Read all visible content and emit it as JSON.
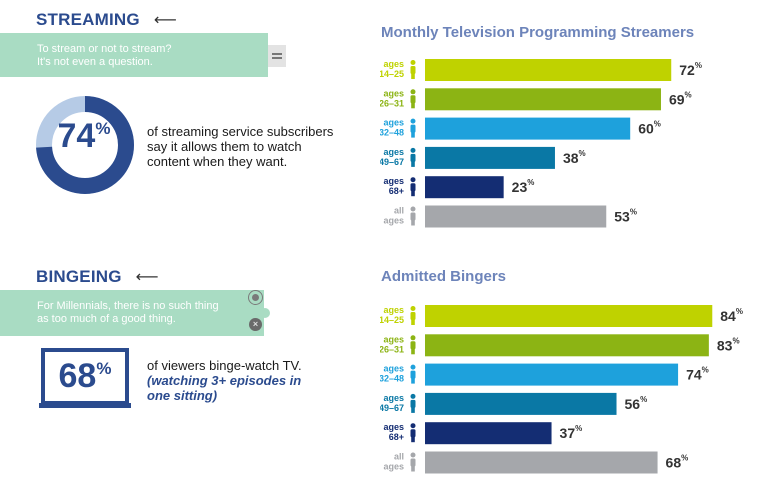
{
  "streaming": {
    "heading": "STREAMING",
    "arrow": "⟵",
    "banner_line1": "To stream or not to stream?",
    "banner_line2": "It's not even a question.",
    "stat_value": "74",
    "stat_fraction": 0.74,
    "stat_unit": "%",
    "stat_line1": "of streaming service subscribers",
    "stat_line2": "say it allows them to watch",
    "stat_line3": "content when they want."
  },
  "bingeing": {
    "heading": "BINGEING",
    "arrow": "⟵",
    "banner_line1": "For Millennials, there is no such thing",
    "banner_line2": "as too much of a good thing.",
    "stat_value": "68",
    "stat_unit": "%",
    "stat_line1": "of viewers binge-watch TV.",
    "stat_em1": "(watching 3+ episodes in",
    "stat_em2": "one sitting)"
  },
  "colors": {
    "navy": "#2b4b8e",
    "mint": "#a9dcc3",
    "donut_light": "#b6cbe6",
    "groups": [
      "#bfd200",
      "#8cb414",
      "#1ea1dc",
      "#0a78a5",
      "#142d73",
      "#a5a7ab"
    ]
  },
  "chart_data": [
    {
      "type": "bar",
      "orientation": "horizontal",
      "title": "Monthly Television Programming Streamers",
      "categories": [
        [
          "ages",
          "14–25"
        ],
        [
          "ages",
          "26–31"
        ],
        [
          "ages",
          "32–48"
        ],
        [
          "ages",
          "49–67"
        ],
        [
          "ages",
          "68+"
        ],
        [
          "all",
          "ages"
        ]
      ],
      "values": [
        72,
        69,
        60,
        38,
        23,
        53
      ],
      "unit": "%",
      "xlim": [
        0,
        100
      ]
    },
    {
      "type": "bar",
      "orientation": "horizontal",
      "title": "Admitted Bingers",
      "categories": [
        [
          "ages",
          "14–25"
        ],
        [
          "ages",
          "26–31"
        ],
        [
          "ages",
          "32–48"
        ],
        [
          "ages",
          "49–67"
        ],
        [
          "ages",
          "68+"
        ],
        [
          "all",
          "ages"
        ]
      ],
      "values": [
        84,
        83,
        74,
        56,
        37,
        68
      ],
      "unit": "%",
      "xlim": [
        0,
        100
      ]
    }
  ]
}
